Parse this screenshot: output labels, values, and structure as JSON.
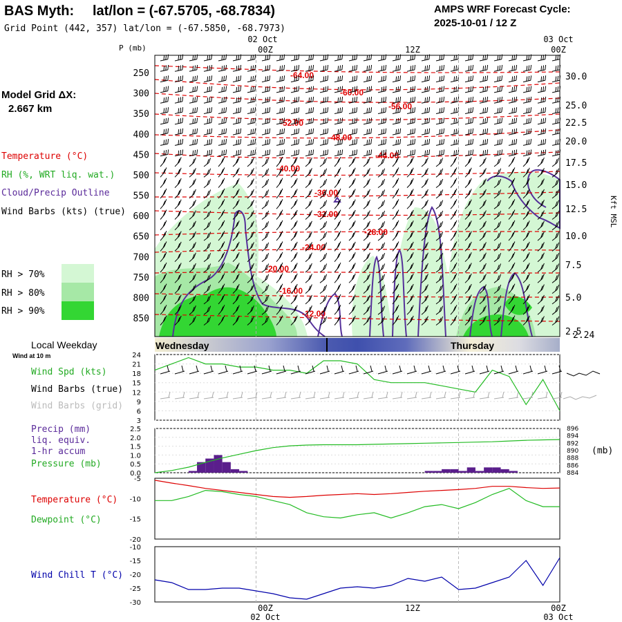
{
  "header": {
    "station": "BAS Myth:",
    "latlon": "lat/lon = (-67.5705, -68.7834)",
    "grid_point": "Grid Point (442, 357) lat/lon = (-67.5850, -68.7973)",
    "cycle_line1": "AMPS WRF Forecast Cycle:",
    "cycle_line2": "2025-10-01 / 12  Z"
  },
  "model_grid": {
    "label": "Model Grid ΔX:",
    "value": "2.667 km"
  },
  "time_axis": {
    "top_dates": [
      "02 Oct",
      "03 Oct"
    ],
    "ticks": [
      "00Z",
      "12Z",
      "00Z"
    ],
    "bottom_dates": [
      "02 Oct",
      "03 Oct"
    ],
    "weekday_label": "Local Weekday",
    "weekdays": [
      "Wednesday",
      "Thursday"
    ]
  },
  "upper_panel": {
    "p_label": "P (mb)",
    "pressure_levels": [
      "250",
      "300",
      "350",
      "400",
      "450",
      "500",
      "550",
      "600",
      "650",
      "700",
      "750",
      "800",
      "850"
    ],
    "height_label": "Kft MSL",
    "heights": [
      "30.0",
      "25.0",
      "22.5",
      "20.0",
      "17.5",
      "15.0",
      "12.5",
      "10.0",
      "7.5",
      "5.0",
      "2.5",
      "2.24"
    ],
    "legend": {
      "temperature": "Temperature (°C)",
      "rh": "RH (%, WRT liq. wat.)",
      "cloud": "Cloud/Precip Outline",
      "wind": "Wind Barbs (kts) (true)",
      "rh70": "RH > 70%",
      "rh80": "RH > 80%",
      "rh90": "RH > 90%"
    },
    "isotherm_labels": [
      "-64.00",
      "-60.00",
      "-56.00",
      "-52.00",
      "-48.00",
      "-44.00",
      "-40.00",
      "-36.00",
      "-32.00",
      "-28.00",
      "-24.00",
      "-20.00",
      "-16.00",
      "-12.00"
    ],
    "colors": {
      "temp": "#e00000",
      "rh70": "#d4f7d4",
      "rh80": "#a6e8a6",
      "rh90": "#33d633",
      "cloud": "#55309a"
    }
  },
  "chart_data": [
    {
      "type": "line",
      "title": "",
      "xlabel": "",
      "labels": {
        "wind_speed": "Wind Spd (kts)",
        "wind_true": "Wind Barbs (true)",
        "wind_grid": "Wind Barbs (grid)",
        "wind_at": "Wind at 10 m"
      },
      "y_ticks": [
        "24",
        "21",
        "18",
        "15",
        "12",
        "9",
        "6",
        "3"
      ],
      "ylim": [
        3,
        24
      ],
      "x_hours": [
        0,
        2,
        4,
        6,
        8,
        10,
        12,
        14,
        16,
        18,
        20,
        22,
        24,
        26,
        28,
        30,
        32,
        34,
        36,
        38,
        40,
        42,
        44,
        46,
        48
      ],
      "series": [
        {
          "name": "Wind Spd (kts)",
          "color": "#22bb22",
          "values": [
            19,
            21,
            23,
            21,
            21,
            20,
            20,
            19,
            19,
            18,
            22,
            22,
            21,
            16,
            15,
            15,
            15,
            14,
            13,
            12,
            19,
            17,
            8,
            16,
            6
          ]
        }
      ]
    },
    {
      "type": "bar",
      "labels": {
        "precip": "Precip (mm)",
        "liq": "liq. equiv.",
        "accum": "1-hr accum",
        "pressure": "Pressure (mb)"
      },
      "y_ticks_left": [
        "2.5",
        "2.0",
        "1.5",
        "1.0",
        "0.5",
        "0.0"
      ],
      "y_ticks_right": [
        "896",
        "894",
        "892",
        "890",
        "888",
        "886",
        "884"
      ],
      "right_unit": "(mb)",
      "ylim_left": [
        0,
        2.5
      ],
      "ylim_right": [
        884,
        896
      ],
      "bar_color": "#5a1e8c",
      "precip": {
        "start_hours": [
          4,
          5,
          6,
          7,
          8,
          9,
          10,
          11,
          32,
          33,
          34,
          35,
          36,
          37,
          38,
          39,
          40,
          41,
          42
        ],
        "values": [
          0.1,
          0.6,
          0.8,
          1.0,
          0.6,
          0.2,
          0.1,
          0.0,
          0.1,
          0.1,
          0.2,
          0.2,
          0.1,
          0.3,
          0.1,
          0.3,
          0.3,
          0.2,
          0.1
        ]
      },
      "series": [
        {
          "name": "Pressure (mb)",
          "color": "#22bb22",
          "x_hours": [
            0,
            2,
            4,
            6,
            8,
            10,
            12,
            14,
            16,
            18,
            20,
            22,
            24,
            26,
            28,
            30,
            32,
            34,
            36,
            38,
            40,
            42,
            44,
            46,
            48
          ],
          "values": [
            884.0,
            884.6,
            885.5,
            886.8,
            888.0,
            889.0,
            890.0,
            890.8,
            891.3,
            891.5,
            891.6,
            891.6,
            891.6,
            891.7,
            891.8,
            891.9,
            892.0,
            892.1,
            892.2,
            892.3,
            892.4,
            892.6,
            892.8,
            892.9,
            893.0
          ]
        }
      ]
    },
    {
      "type": "line",
      "y_ticks": [
        "-5",
        "-10",
        "-15",
        "-20"
      ],
      "ylim": [
        -20,
        -5
      ],
      "x_hours": [
        0,
        2,
        4,
        6,
        8,
        10,
        12,
        14,
        16,
        18,
        20,
        22,
        24,
        26,
        28,
        30,
        32,
        34,
        36,
        38,
        40,
        42,
        44,
        46,
        48
      ],
      "series": [
        {
          "name": "Temperature (°C)",
          "color": "#dd0000",
          "values": [
            -5.5,
            -6.2,
            -6.8,
            -7.5,
            -8.0,
            -8.5,
            -9.0,
            -9.5,
            -9.7,
            -9.5,
            -9.2,
            -9.0,
            -8.8,
            -9.0,
            -8.8,
            -8.5,
            -8.2,
            -8.0,
            -7.8,
            -7.5,
            -7.0,
            -7.0,
            -7.3,
            -7.5,
            -7.4
          ]
        },
        {
          "name": "Dewpoint (°C)",
          "color": "#22bb22",
          "values": [
            -10.5,
            -10.5,
            -9.5,
            -8.0,
            -8.3,
            -9.0,
            -9.5,
            -10.5,
            -11.5,
            -13.5,
            -14.5,
            -14.8,
            -14.0,
            -13.5,
            -14.8,
            -13.5,
            -12.0,
            -11.5,
            -12.5,
            -11.0,
            -9.0,
            -7.5,
            -10.5,
            -12.0,
            -12.0
          ]
        }
      ]
    },
    {
      "type": "line",
      "y_ticks": [
        "-10",
        "-15",
        "-20",
        "-25",
        "-30"
      ],
      "ylim": [
        -30,
        -10
      ],
      "x_hours": [
        0,
        2,
        4,
        6,
        8,
        10,
        12,
        14,
        16,
        18,
        20,
        22,
        24,
        26,
        28,
        30,
        32,
        34,
        36,
        38,
        40,
        42,
        44,
        46,
        48
      ],
      "series": [
        {
          "name": "Wind Chill T (°C)",
          "color": "#0000aa",
          "values": [
            -22,
            -23,
            -25.5,
            -25.5,
            -25,
            -25,
            -26,
            -27,
            -28.5,
            -29,
            -27,
            -25,
            -24.5,
            -25,
            -24,
            -21.5,
            -22.5,
            -21,
            -25.5,
            -25,
            -23,
            -21,
            -15,
            -24,
            -14
          ]
        }
      ]
    }
  ]
}
